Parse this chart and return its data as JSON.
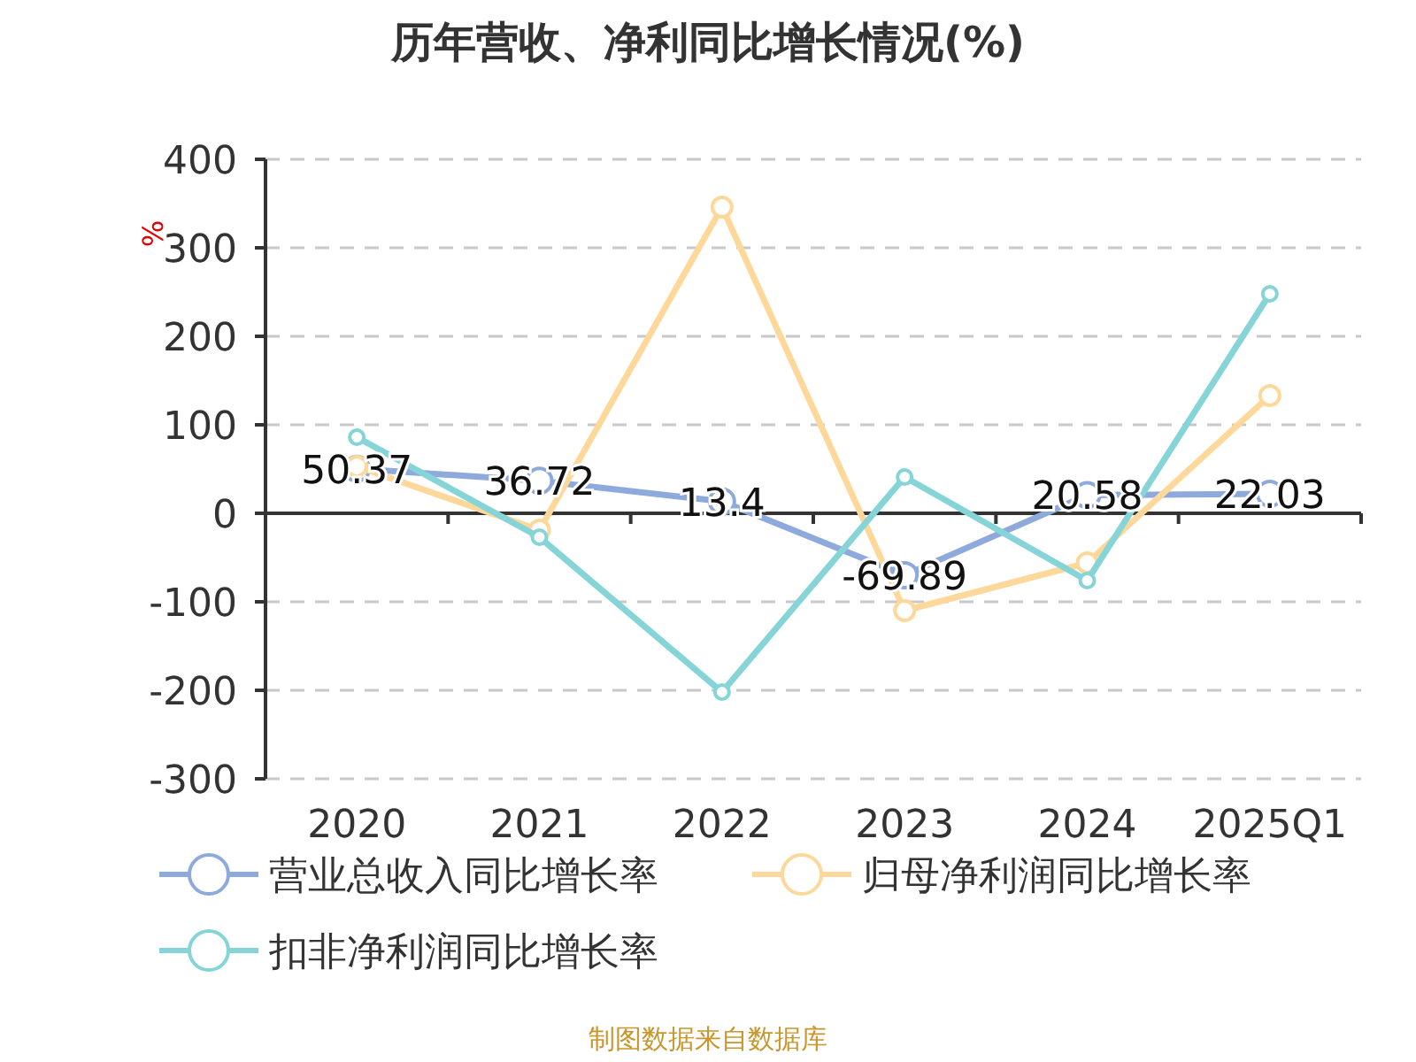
{
  "chart_data": {
    "type": "line",
    "title": "历年营收、净利同比增长情况(%)",
    "ylabel": "%",
    "categories": [
      "2020",
      "2021",
      "2022",
      "2023",
      "2024",
      "2025Q1"
    ],
    "series": [
      {
        "name": "营业总收入同比增长率",
        "color": "#8eaadc",
        "values": [
          50.37,
          36.72,
          13.4,
          -69.89,
          20.58,
          22.03
        ],
        "value_labels": [
          "50.37",
          "36.72",
          "13.4",
          "-69.89",
          "20.58",
          "22.03"
        ]
      },
      {
        "name": "归母净利润同比增长率",
        "color": "#fdd89a",
        "values": [
          53,
          -19,
          346,
          -110,
          -56,
          133
        ]
      },
      {
        "name": "扣非净利润同比增长率",
        "color": "#84d4d8",
        "values": [
          86,
          -27,
          -202,
          41,
          -76,
          248
        ]
      }
    ],
    "ylim": [
      -300,
      400
    ],
    "yticks": [
      -300,
      -200,
      -100,
      0,
      100,
      200,
      300,
      400
    ],
    "grid": "y",
    "legend": "bottom",
    "marker": "circle",
    "annotations": [
      "制图数据来自数据库"
    ]
  }
}
